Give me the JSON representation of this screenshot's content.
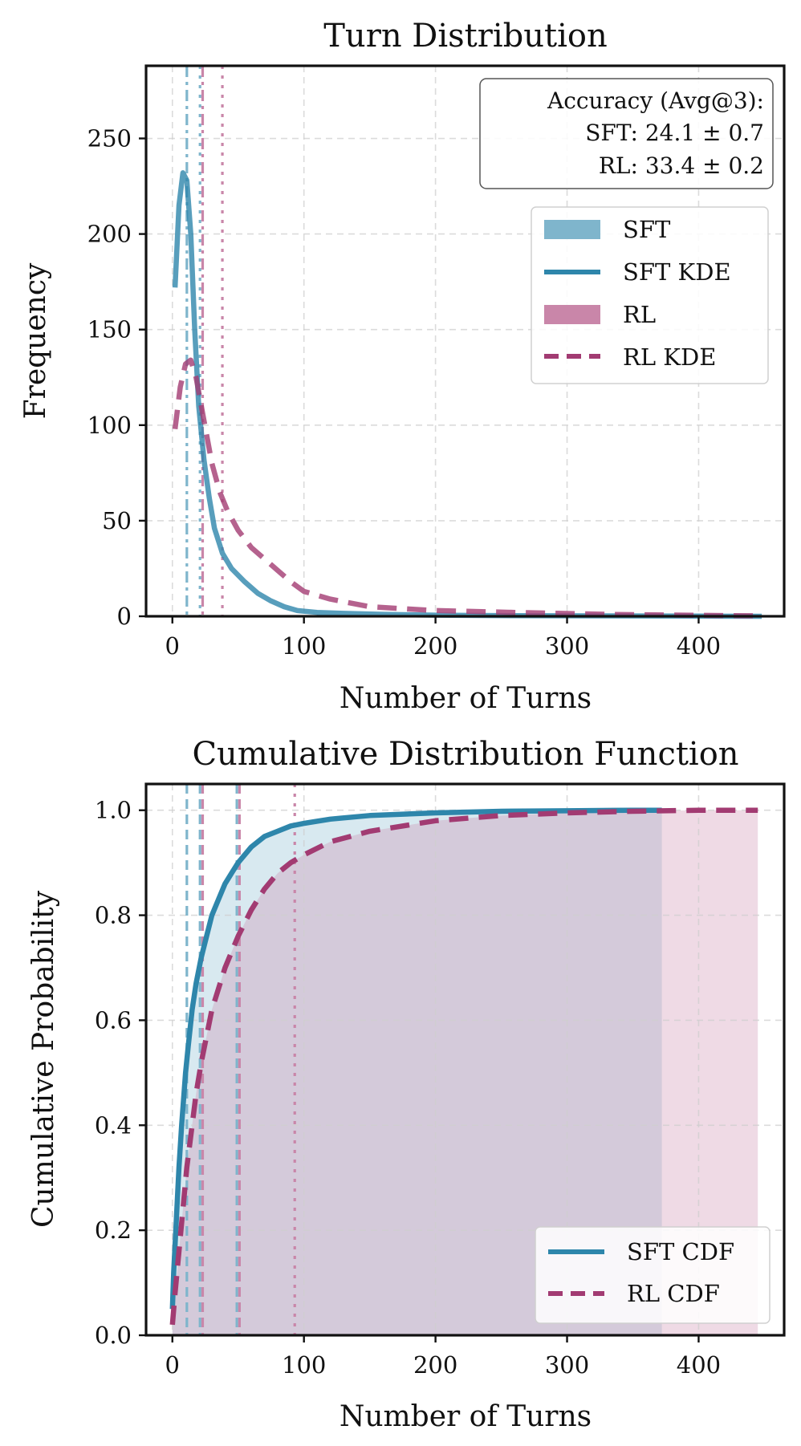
{
  "colors": {
    "sft": "#2e86ab",
    "sft_hist": "#7fb5cc",
    "rl": "#a23b72",
    "rl_hist": "#c986a9",
    "sft_fill": "#cfe3ec",
    "rl_fill": "#ead1df",
    "overlap_fill": "#c9c3d7"
  },
  "chart_data": [
    {
      "type": "line",
      "title": "Turn Distribution",
      "xlabel": "Number of Turns",
      "ylabel": "Frequency",
      "xlim": [
        -20,
        465
      ],
      "ylim": [
        0,
        288
      ],
      "xticks": [
        0,
        100,
        200,
        300,
        400
      ],
      "yticks": [
        0,
        50,
        100,
        150,
        200,
        250
      ],
      "annotation": {
        "title": "Accuracy (Avg@3):",
        "sft": "SFT: 24.1 ± 0.7",
        "rl": "RL: 33.4 ± 0.2"
      },
      "legend": [
        {
          "label": "SFT",
          "style": "patch",
          "series": "sft"
        },
        {
          "label": "SFT KDE",
          "style": "solid",
          "series": "sft"
        },
        {
          "label": "RL",
          "style": "patch",
          "series": "rl"
        },
        {
          "label": "RL KDE",
          "style": "dashed",
          "series": "rl"
        }
      ],
      "series": [
        {
          "name": "SFT KDE",
          "key": "sft",
          "dash": "none",
          "x": [
            2,
            5,
            8,
            11,
            14,
            17,
            20,
            24,
            28,
            32,
            38,
            45,
            55,
            65,
            75,
            85,
            95,
            110,
            130,
            160,
            200,
            260,
            330,
            400,
            448
          ],
          "y": [
            172,
            215,
            232,
            228,
            200,
            150,
            110,
            82,
            62,
            46,
            33,
            25,
            18,
            12,
            8,
            5,
            3,
            2,
            1.5,
            1,
            0.6,
            0.3,
            0.2,
            0.1,
            0
          ]
        },
        {
          "name": "RL KDE",
          "key": "rl",
          "dash": "24 13",
          "x": [
            2,
            6,
            10,
            14,
            18,
            22,
            26,
            30,
            36,
            42,
            50,
            60,
            70,
            80,
            90,
            100,
            120,
            150,
            200,
            260,
            330,
            400,
            448
          ],
          "y": [
            98,
            120,
            132,
            134,
            125,
            110,
            95,
            80,
            65,
            55,
            45,
            36,
            30,
            24,
            18,
            13,
            9,
            5,
            3,
            2,
            1,
            0.5,
            0.2
          ]
        }
      ],
      "vlines": [
        {
          "x": 11,
          "key": "sft",
          "style": "dashdot"
        },
        {
          "x": 21,
          "key": "sft",
          "style": "dotted"
        },
        {
          "x": 23,
          "key": "rl",
          "style": "dashdot"
        },
        {
          "x": 38,
          "key": "rl",
          "style": "dotted"
        }
      ]
    },
    {
      "type": "line",
      "title": "Cumulative Distribution Function",
      "xlabel": "Number of Turns",
      "ylabel": "Cumulative Probability",
      "xlim": [
        -20,
        465
      ],
      "ylim": [
        0,
        1.05
      ],
      "xticks": [
        0,
        100,
        200,
        300,
        400
      ],
      "yticks": [
        0.0,
        0.2,
        0.4,
        0.6,
        0.8,
        1.0
      ],
      "legend": [
        {
          "label": "SFT CDF",
          "style": "solid",
          "series": "sft"
        },
        {
          "label": "RL CDF",
          "style": "dashed",
          "series": "rl"
        }
      ],
      "series": [
        {
          "name": "SFT CDF",
          "key": "sft",
          "dash": "none",
          "x": [
            0,
            1,
            3,
            5,
            7,
            10,
            12,
            15,
            18,
            22,
            26,
            30,
            35,
            40,
            45,
            50,
            60,
            70,
            80,
            90,
            100,
            120,
            150,
            200,
            250,
            300,
            350,
            372
          ],
          "y": [
            0.05,
            0.12,
            0.22,
            0.32,
            0.4,
            0.5,
            0.55,
            0.62,
            0.67,
            0.72,
            0.76,
            0.8,
            0.83,
            0.86,
            0.88,
            0.9,
            0.93,
            0.95,
            0.96,
            0.97,
            0.975,
            0.983,
            0.99,
            0.995,
            0.998,
            0.999,
            1.0,
            1.0
          ]
        },
        {
          "name": "RL CDF",
          "key": "rl",
          "dash": "24 13",
          "x": [
            0,
            2,
            5,
            8,
            11,
            15,
            18,
            22,
            26,
            30,
            35,
            40,
            45,
            50,
            60,
            70,
            80,
            90,
            100,
            120,
            150,
            200,
            250,
            300,
            350,
            400,
            445
          ],
          "y": [
            0.02,
            0.08,
            0.16,
            0.24,
            0.32,
            0.4,
            0.46,
            0.52,
            0.57,
            0.62,
            0.66,
            0.7,
            0.73,
            0.76,
            0.81,
            0.85,
            0.88,
            0.9,
            0.915,
            0.94,
            0.96,
            0.98,
            0.99,
            0.995,
            0.998,
            1.0,
            1.0
          ]
        }
      ],
      "vlines": [
        {
          "x": 11,
          "key": "sft",
          "style": "dashed"
        },
        {
          "x": 21,
          "key": "sft",
          "style": "dashed"
        },
        {
          "x": 23,
          "key": "rl",
          "style": "dashed"
        },
        {
          "x": 49,
          "key": "sft",
          "style": "dashed"
        },
        {
          "x": 51,
          "key": "rl",
          "style": "dashed"
        },
        {
          "x": 93,
          "key": "rl",
          "style": "dotted"
        }
      ]
    }
  ]
}
